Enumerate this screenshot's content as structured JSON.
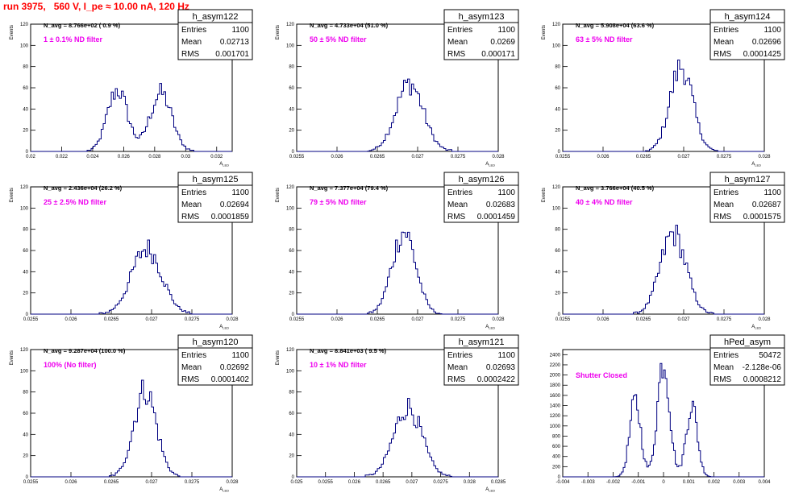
{
  "title": "run 3975,   560 V, I_pe ≈ 10.00 nA, 120 Hz",
  "chart_data": [
    {
      "type": "histogram",
      "name": "h_asym122",
      "ylabel": "Events",
      "xlabel": "A_LED",
      "ylim": [
        0,
        120
      ],
      "yticks": [
        "0",
        "20",
        "40",
        "60",
        "80",
        "100",
        "120"
      ],
      "xlim": [
        0.02,
        0.033
      ],
      "xticks": [
        "0.02",
        "0.022",
        "0.024",
        "0.026",
        "0.028",
        "0.03",
        "0.032"
      ],
      "navg": "N_avg = 8.766e+02 ( 0.9 %)",
      "note": "1 ± 0.1% ND filter",
      "stats": {
        "Entries": "1100",
        "Mean": "0.02713",
        "RMS": "0.001701"
      },
      "peaks": [
        {
          "center": 0.0256,
          "height": 58,
          "width": 0.00065
        },
        {
          "center": 0.0284,
          "height": 55,
          "width": 0.0007
        }
      ],
      "bins": 100
    },
    {
      "type": "histogram",
      "name": "h_asym123",
      "ylabel": "Events",
      "xlabel": "A_LED",
      "ylim": [
        0,
        120
      ],
      "yticks": [
        "0",
        "20",
        "40",
        "60",
        "80",
        "100",
        "120"
      ],
      "xlim": [
        0.0255,
        0.028
      ],
      "xticks": [
        "0.0255",
        "0.026",
        "0.0265",
        "0.027",
        "0.0275",
        "0.028"
      ],
      "navg": "N_avg = 4.733e+04 (51.0 %)",
      "note": "50 ± 5% ND filter",
      "stats": {
        "Entries": "1100",
        "Mean": "0.0269",
        "RMS": "0.000171"
      },
      "peaks": [
        {
          "center": 0.0269,
          "height": 64,
          "width": 0.00017
        }
      ],
      "bins": 100
    },
    {
      "type": "histogram",
      "name": "h_asym124",
      "ylabel": "Events",
      "xlabel": "A_LED",
      "ylim": [
        0,
        120
      ],
      "yticks": [
        "0",
        "20",
        "40",
        "60",
        "80",
        "100",
        "120"
      ],
      "xlim": [
        0.0255,
        0.028
      ],
      "xticks": [
        "0.0255",
        "0.026",
        "0.0265",
        "0.027",
        "0.0275",
        "0.028"
      ],
      "navg": "N_avg = 5.908e+04 (63.6 %)",
      "note": "63 ± 5% ND filter",
      "stats": {
        "Entries": "1100",
        "Mean": "0.02696",
        "RMS": "0.0001425"
      },
      "peaks": [
        {
          "center": 0.02697,
          "height": 80,
          "width": 0.00014
        }
      ],
      "bins": 100
    },
    {
      "type": "histogram",
      "name": "h_asym125",
      "ylabel": "Events",
      "xlabel": "A_LED",
      "ylim": [
        0,
        120
      ],
      "yticks": [
        "0",
        "20",
        "40",
        "60",
        "80",
        "100",
        "120"
      ],
      "xlim": [
        0.0255,
        0.028
      ],
      "xticks": [
        "0.0255",
        "0.026",
        "0.0265",
        "0.027",
        "0.0275",
        "0.028"
      ],
      "navg": "N_avg = 2.436e+04 (26.2 %)",
      "note": "25 ± 2.5% ND filter",
      "stats": {
        "Entries": "1100",
        "Mean": "0.02694",
        "RMS": "0.0001859"
      },
      "peaks": [
        {
          "center": 0.02694,
          "height": 62,
          "width": 0.000186
        }
      ],
      "bins": 100
    },
    {
      "type": "histogram",
      "name": "h_asym126",
      "ylabel": "Events",
      "xlabel": "A_LED",
      "ylim": [
        0,
        120
      ],
      "yticks": [
        "0",
        "20",
        "40",
        "60",
        "80",
        "100",
        "120"
      ],
      "xlim": [
        0.0255,
        0.028
      ],
      "xticks": [
        "0.0255",
        "0.026",
        "0.0265",
        "0.027",
        "0.0275",
        "0.028"
      ],
      "navg": "N_avg = 7.377e+04 (79.4 %)",
      "note": "79 ± 5% ND filter",
      "stats": {
        "Entries": "1100",
        "Mean": "0.02683",
        "RMS": "0.0001459"
      },
      "peaks": [
        {
          "center": 0.02683,
          "height": 78,
          "width": 0.000146
        }
      ],
      "bins": 100
    },
    {
      "type": "histogram",
      "name": "h_asym127",
      "ylabel": "Events",
      "xlabel": "A_LED",
      "ylim": [
        0,
        120
      ],
      "yticks": [
        "0",
        "20",
        "40",
        "60",
        "80",
        "100",
        "120"
      ],
      "xlim": [
        0.0255,
        0.028
      ],
      "xticks": [
        "0.0255",
        "0.026",
        "0.0265",
        "0.027",
        "0.0275",
        "0.028"
      ],
      "navg": "N_avg = 3.766e+04 (40.5 %)",
      "note": "40 ± 4% ND filter",
      "stats": {
        "Entries": "1100",
        "Mean": "0.02687",
        "RMS": "0.0001575"
      },
      "peaks": [
        {
          "center": 0.02687,
          "height": 76,
          "width": 0.000158
        }
      ],
      "bins": 100
    },
    {
      "type": "histogram",
      "name": "h_asym120",
      "ylabel": "Events",
      "xlabel": "A_LED",
      "ylim": [
        0,
        120
      ],
      "yticks": [
        "0",
        "20",
        "40",
        "60",
        "80",
        "100",
        "120"
      ],
      "xlim": [
        0.0255,
        0.028
      ],
      "xticks": [
        "0.0255",
        "0.026",
        "0.0265",
        "0.027",
        "0.0275",
        "0.028"
      ],
      "navg": "N_avg = 9.287e+04 (100.0 %)",
      "note": "100% (No filter)",
      "stats": {
        "Entries": "1100",
        "Mean": "0.02692",
        "RMS": "0.0001402"
      },
      "peaks": [
        {
          "center": 0.02692,
          "height": 82,
          "width": 0.00014
        }
      ],
      "bins": 100
    },
    {
      "type": "histogram",
      "name": "h_asym121",
      "ylabel": "Events",
      "xlabel": "A_LED",
      "ylim": [
        0,
        120
      ],
      "yticks": [
        "0",
        "20",
        "40",
        "60",
        "80",
        "100",
        "120"
      ],
      "xlim": [
        0.025,
        0.0285
      ],
      "xticks": [
        "0.025",
        "0.0255",
        "0.026",
        "0.0265",
        "0.027",
        "0.0275",
        "0.028",
        "0.0285"
      ],
      "navg": "N_avg = 8.841e+03 ( 9.5 %)",
      "note": "10 ± 1% ND filter",
      "stats": {
        "Entries": "1100",
        "Mean": "0.02693",
        "RMS": "0.0002422"
      },
      "peaks": [
        {
          "center": 0.02693,
          "height": 66,
          "width": 0.00024
        }
      ],
      "bins": 100
    },
    {
      "type": "histogram",
      "name": "hPed_asym",
      "ylabel": "",
      "xlabel": "",
      "ylim": [
        0,
        2500
      ],
      "yticks": [
        "0",
        "200",
        "400",
        "600",
        "800",
        "1000",
        "1200",
        "1400",
        "1600",
        "1800",
        "2000",
        "2200",
        "2400"
      ],
      "xlim": [
        -0.004,
        0.004
      ],
      "xticks": [
        "-0.004",
        "-0.003",
        "-0.002",
        "-0.001",
        "0",
        "0.001",
        "0.002",
        "0.003",
        "0.004"
      ],
      "navg": "",
      "note": "Shutter Closed",
      "stats": {
        "Entries": "50472",
        "Mean": "-2.128e-06",
        "RMS": "0.0008212"
      },
      "peaks": [
        {
          "center": -0.00112,
          "height": 1480,
          "width": 0.00022
        },
        {
          "center": 0.0,
          "height": 2300,
          "width": 0.00024
        },
        {
          "center": 0.00112,
          "height": 1420,
          "width": 0.00022
        }
      ],
      "bins": 120
    }
  ]
}
